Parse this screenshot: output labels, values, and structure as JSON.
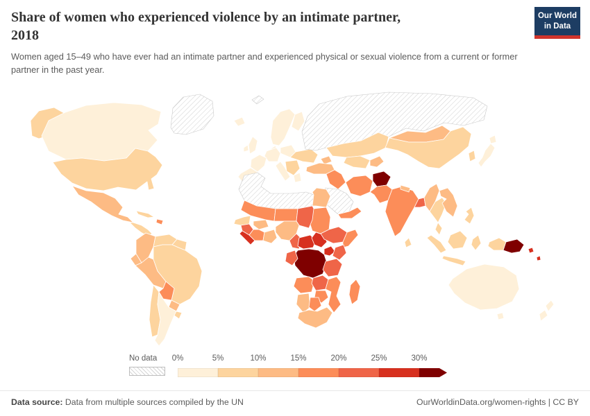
{
  "header": {
    "title_line1": "Share of women who experienced violence by an intimate partner,",
    "title_line2": "2018",
    "subtitle": "Women aged 15–49 who have ever had an intimate partner and experienced physical or sexual violence from a current or former partner in the past year.",
    "logo": {
      "line1": "Our World",
      "line2": "in Data",
      "bg_color": "#1d3d63",
      "accent_color": "#d0342c"
    }
  },
  "legend": {
    "no_data_label": "No data",
    "tick_labels": [
      "0%",
      "5%",
      "10%",
      "15%",
      "20%",
      "25%",
      "30%"
    ]
  },
  "footer": {
    "source_label": "Data source:",
    "source_text": "Data from multiple sources compiled by the UN",
    "right_text": "OurWorldinData.org/women-rights | CC BY"
  },
  "chart_data": {
    "type": "heatmap",
    "subtype": "world-choropleth",
    "title": "Share of women who experienced violence by an intimate partner, 2018",
    "unit": "%",
    "bin_edges": [
      0,
      5,
      10,
      15,
      20,
      25,
      30
    ],
    "bin_colors": [
      "#fef0d9",
      "#fdd49e",
      "#fdbb84",
      "#fc8d59",
      "#ef6548",
      "#d7301f",
      "#7f0000"
    ],
    "no_data_fill": "hatched",
    "regions": [
      {
        "id": "canada",
        "name": "Canada",
        "value": 3
      },
      {
        "id": "united-states",
        "name": "United States",
        "value": 6
      },
      {
        "id": "greenland",
        "name": "Greenland",
        "value": null
      },
      {
        "id": "mexico",
        "name": "Mexico",
        "value": 10
      },
      {
        "id": "central-america",
        "name": "Central America",
        "value": 9
      },
      {
        "id": "cuba",
        "name": "Cuba",
        "value": 7
      },
      {
        "id": "hispaniola",
        "name": "Haiti/Dominican Republic",
        "value": 17
      },
      {
        "id": "colombia",
        "name": "Colombia",
        "value": 12
      },
      {
        "id": "venezuela",
        "name": "Venezuela",
        "value": 9
      },
      {
        "id": "guyanas",
        "name": "Guyana/Suriname",
        "value": 9
      },
      {
        "id": "ecuador",
        "name": "Ecuador",
        "value": 12
      },
      {
        "id": "peru",
        "name": "Peru",
        "value": 11
      },
      {
        "id": "brazil",
        "name": "Brazil",
        "value": 6
      },
      {
        "id": "bolivia",
        "name": "Bolivia",
        "value": 17
      },
      {
        "id": "paraguay",
        "name": "Paraguay",
        "value": 13
      },
      {
        "id": "chile",
        "name": "Chile",
        "value": 6
      },
      {
        "id": "argentina",
        "name": "Argentina",
        "value": 4
      },
      {
        "id": "uruguay",
        "name": "Uruguay",
        "value": 5
      },
      {
        "id": "iceland",
        "name": "Iceland",
        "value": 2
      },
      {
        "id": "uk-ireland",
        "name": "United Kingdom/Ireland",
        "value": 4
      },
      {
        "id": "scandinavia",
        "name": "Scandinavia",
        "value": 4
      },
      {
        "id": "denmark",
        "name": "Denmark",
        "value": 3
      },
      {
        "id": "central-europe",
        "name": "Central Europe",
        "value": 3
      },
      {
        "id": "france",
        "name": "France",
        "value": 4
      },
      {
        "id": "iberia",
        "name": "Spain/Portugal",
        "value": 3
      },
      {
        "id": "italy",
        "name": "Italy",
        "value": 4
      },
      {
        "id": "poland-baltics",
        "name": "Poland/Baltics",
        "value": 3
      },
      {
        "id": "ukraine",
        "name": "Ukraine/Belarus",
        "value": 7
      },
      {
        "id": "balkans",
        "name": "Balkans",
        "value": 6
      },
      {
        "id": "greece",
        "name": "Greece",
        "value": 4
      },
      {
        "id": "russia",
        "name": "Russia",
        "value": null
      },
      {
        "id": "svalbard",
        "name": "Svalbard",
        "value": null
      },
      {
        "id": "kazakhstan",
        "name": "Kazakhstan",
        "value": 5
      },
      {
        "id": "central-asia",
        "name": "Uzbekistan/Turkmenistan",
        "value": 9
      },
      {
        "id": "kyrgyz-tajik",
        "name": "Kyrgyzstan/Tajikistan",
        "value": 13
      },
      {
        "id": "caucasus",
        "name": "Caucasus",
        "value": 10
      },
      {
        "id": "turkey",
        "name": "Turkey",
        "value": 11
      },
      {
        "id": "iraq-syria",
        "name": "Iraq/Syria",
        "value": 17
      },
      {
        "id": "saudi-arabia",
        "name": "Saudi Arabia",
        "value": null
      },
      {
        "id": "yemen-oman",
        "name": "Yemen/Oman",
        "value": 17
      },
      {
        "id": "iran",
        "name": "Iran",
        "value": 18
      },
      {
        "id": "afghanistan",
        "name": "Afghanistan",
        "value": 35
      },
      {
        "id": "pakistan",
        "name": "Pakistan",
        "value": 15
      },
      {
        "id": "india",
        "name": "India",
        "value": 18
      },
      {
        "id": "nepal",
        "name": "Nepal",
        "value": 11
      },
      {
        "id": "bangladesh",
        "name": "Bangladesh",
        "value": 23
      },
      {
        "id": "sri-lanka",
        "name": "Sri Lanka",
        "value": 6
      },
      {
        "id": "mongolia",
        "name": "Mongolia",
        "value": 12
      },
      {
        "id": "china",
        "name": "China",
        "value": 8
      },
      {
        "id": "korea",
        "name": "South Korea",
        "value": 7
      },
      {
        "id": "japan",
        "name": "Japan",
        "value": 4
      },
      {
        "id": "myanmar",
        "name": "Myanmar",
        "value": 11
      },
      {
        "id": "thailand",
        "name": "Thailand",
        "value": 9
      },
      {
        "id": "indochina",
        "name": "Vietnam/Laos/Cambodia",
        "value": 10
      },
      {
        "id": "malaysia",
        "name": "Malaysia",
        "value": 7
      },
      {
        "id": "indonesia",
        "name": "Indonesia",
        "value": 9
      },
      {
        "id": "philippines",
        "name": "Philippines",
        "value": 6
      },
      {
        "id": "papua-new-guinea",
        "name": "Papua New Guinea",
        "value": 32
      },
      {
        "id": "melanesia",
        "name": "Solomon Islands/Vanuatu",
        "value": 29
      },
      {
        "id": "australia",
        "name": "Australia",
        "value": 3
      },
      {
        "id": "new-zealand",
        "name": "New Zealand",
        "value": 3
      },
      {
        "id": "north-africa",
        "name": "Morocco/Algeria/Libya",
        "value": null
      },
      {
        "id": "egypt",
        "name": "Egypt",
        "value": 14
      },
      {
        "id": "sudan",
        "name": "Sudan",
        "value": 17
      },
      {
        "id": "mali-mauritania",
        "name": "Mali/Mauritania",
        "value": 16
      },
      {
        "id": "niger",
        "name": "Niger",
        "value": 16
      },
      {
        "id": "chad",
        "name": "Chad",
        "value": 21
      },
      {
        "id": "senegal",
        "name": "Senegal",
        "value": 8
      },
      {
        "id": "guinea",
        "name": "Guinea",
        "value": 21
      },
      {
        "id": "sierra-leone-liberia",
        "name": "Sierra Leone/Liberia",
        "value": 28
      },
      {
        "id": "burkina",
        "name": "Burkina Faso",
        "value": 11
      },
      {
        "id": "ivory-coast",
        "name": "Côte d'Ivoire",
        "value": 16
      },
      {
        "id": "ghana-togo-benin",
        "name": "Ghana/Togo/Benin",
        "value": 10
      },
      {
        "id": "nigeria",
        "name": "Nigeria",
        "value": 14
      },
      {
        "id": "cameroon",
        "name": "Cameroon",
        "value": 20
      },
      {
        "id": "central-african-republic",
        "name": "Central African Republic",
        "value": 25
      },
      {
        "id": "south-sudan",
        "name": "South Sudan",
        "value": 26
      },
      {
        "id": "ethiopia",
        "name": "Ethiopia",
        "value": 20
      },
      {
        "id": "somalia",
        "name": "Somalia",
        "value": 19
      },
      {
        "id": "uganda",
        "name": "Uganda",
        "value": 26
      },
      {
        "id": "kenya",
        "name": "Kenya",
        "value": 23
      },
      {
        "id": "drc",
        "name": "Democratic Republic of Congo",
        "value": 36
      },
      {
        "id": "congo-gabon",
        "name": "Congo/Gabon",
        "value": 22
      },
      {
        "id": "tanzania",
        "name": "Tanzania",
        "value": 24
      },
      {
        "id": "angola",
        "name": "Angola",
        "value": 17
      },
      {
        "id": "zambia",
        "name": "Zambia",
        "value": 21
      },
      {
        "id": "mozambique",
        "name": "Mozambique",
        "value": 16
      },
      {
        "id": "zimbabwe",
        "name": "Zimbabwe",
        "value": 18
      },
      {
        "id": "namibia",
        "name": "Namibia",
        "value": 12
      },
      {
        "id": "botswana",
        "name": "Botswana",
        "value": 17
      },
      {
        "id": "south-africa",
        "name": "South Africa",
        "value": 13
      },
      {
        "id": "madagascar",
        "name": "Madagascar",
        "value": 15
      }
    ]
  }
}
